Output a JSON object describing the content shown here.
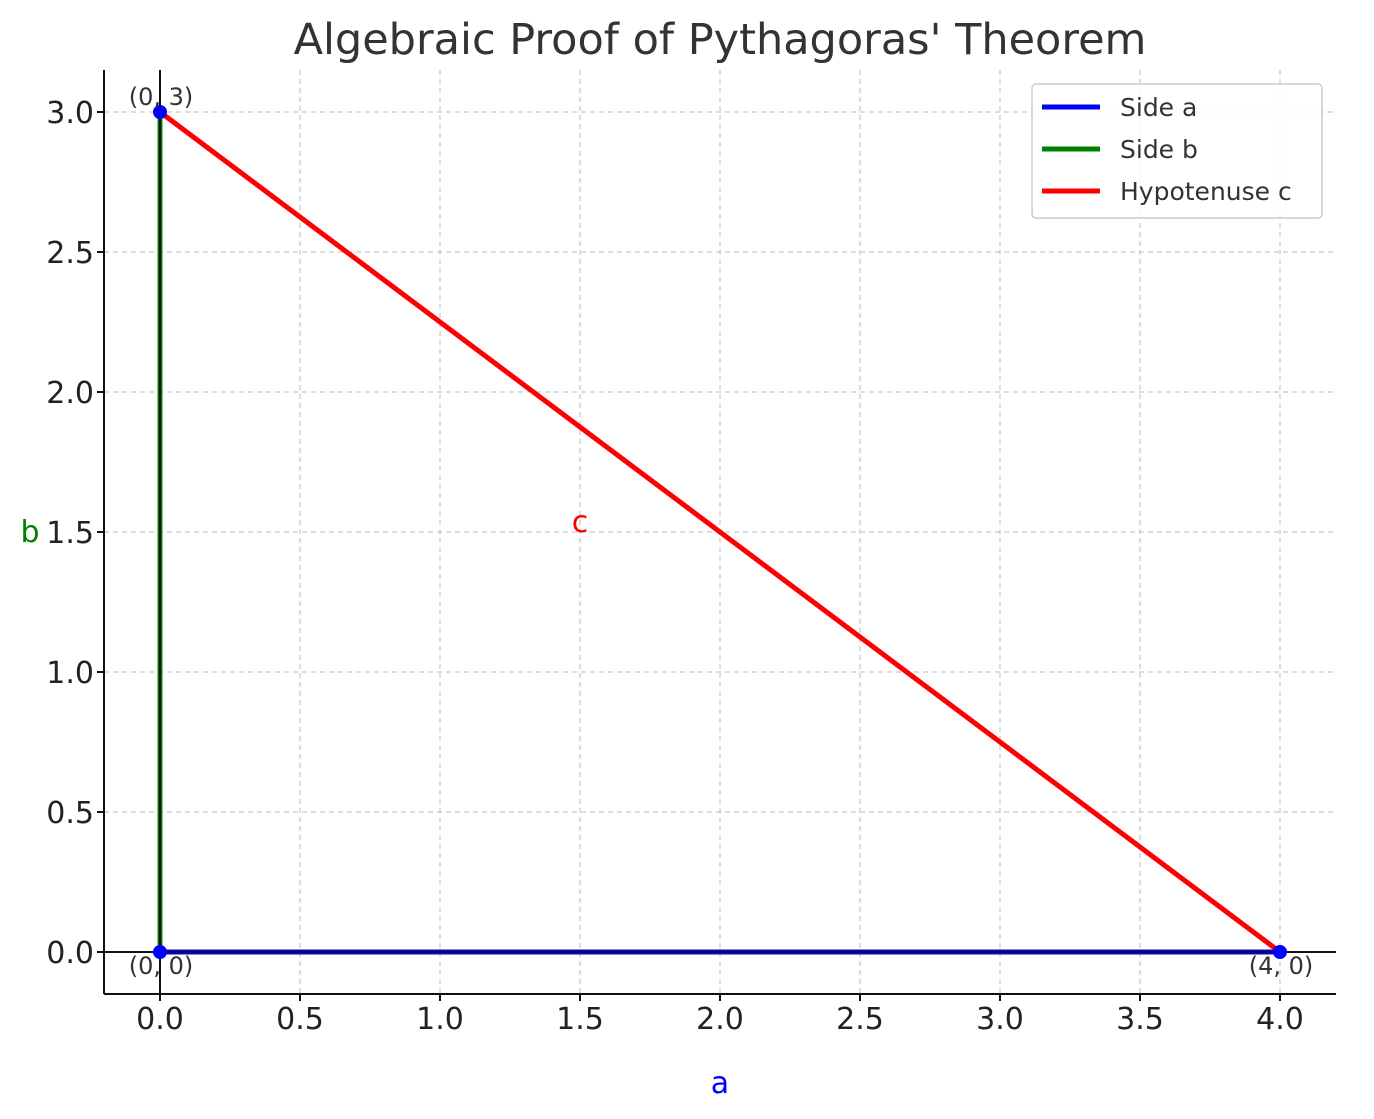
{
  "chart_data": {
    "type": "line",
    "title": "Algebraic Proof of Pythagoras' Theorem",
    "xlabel": "a",
    "ylabel": "b",
    "xlabel_color": "#0000ff",
    "ylabel_color": "#008000",
    "xlim": [
      -0.2,
      4.2
    ],
    "ylim": [
      -0.15,
      3.15
    ],
    "xticks": [
      0.0,
      0.5,
      1.0,
      1.5,
      2.0,
      2.5,
      3.0,
      3.5,
      4.0
    ],
    "xtick_labels": [
      "0.0",
      "0.5",
      "1.0",
      "1.5",
      "2.0",
      "2.5",
      "3.0",
      "3.5",
      "4.0"
    ],
    "yticks": [
      0.0,
      0.5,
      1.0,
      1.5,
      2.0,
      2.5,
      3.0
    ],
    "ytick_labels": [
      "0.0",
      "0.5",
      "1.0",
      "1.5",
      "2.0",
      "2.5",
      "3.0"
    ],
    "grid": true,
    "legend_position": "top-right",
    "series": [
      {
        "name": "Side a",
        "color": "#0000ff",
        "x": [
          0,
          4
        ],
        "y": [
          0,
          0
        ]
      },
      {
        "name": "Side b",
        "color": "#008000",
        "x": [
          0,
          0
        ],
        "y": [
          0,
          3
        ]
      },
      {
        "name": "Hypotenuse c",
        "color": "#ff0000",
        "x": [
          0,
          4
        ],
        "y": [
          3,
          0
        ]
      }
    ],
    "vertices": [
      {
        "x": 0,
        "y": 0,
        "label": "(0, 0)"
      },
      {
        "x": 4,
        "y": 0,
        "label": "(4, 0)"
      },
      {
        "x": 0,
        "y": 3,
        "label": "(0, 3)"
      }
    ],
    "vertex_color": "#0000ff",
    "annotations": [
      {
        "text": "c",
        "x": 1.5,
        "y": 1.5,
        "color": "#ff0000"
      }
    ]
  }
}
